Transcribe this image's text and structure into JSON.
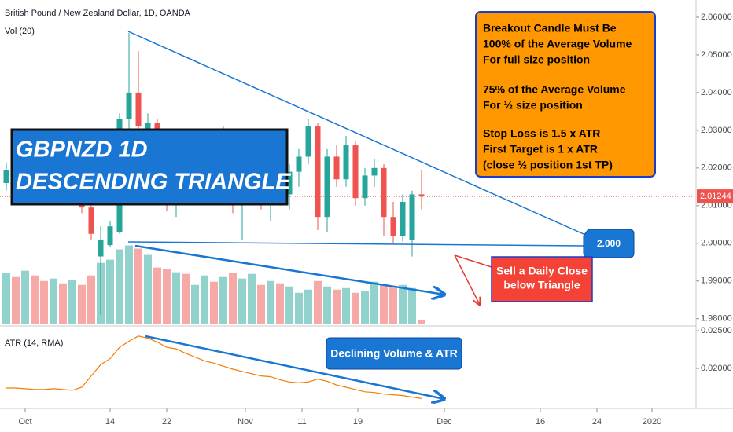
{
  "chart_data": {
    "type": "candlestick",
    "title": "British Pound / New Zealand Dollar, 1D, OANDA",
    "candles": {
      "up_color": "#26a69a",
      "down_color": "#ef5350",
      "open": [
        2.016,
        2.0195,
        2.018,
        2.0225,
        2.0195,
        2.0165,
        2.0185,
        2.0145,
        2.016,
        2.0095,
        1.9965,
        1.9995,
        2.003,
        2.033,
        2.04,
        2.03,
        2.032,
        2.0195,
        2.0105,
        2.017,
        2.0135,
        2.02,
        2.026,
        2.018,
        2.028,
        2.011,
        2.015,
        2.021,
        2.012,
        2.018,
        2.013,
        2.019,
        2.023,
        2.031,
        2.007,
        2.023,
        2.017,
        2.026,
        2.012,
        2.018,
        2.02,
        2.007,
        2.002,
        2.001,
        2.013
      ],
      "high": [
        2.0215,
        2.023,
        2.024,
        2.025,
        2.0215,
        2.02,
        2.0205,
        2.0175,
        2.017,
        2.011,
        2.0045,
        2.006,
        2.0345,
        2.0558,
        2.051,
        2.0345,
        2.033,
        2.023,
        2.019,
        2.021,
        2.022,
        2.03,
        2.029,
        2.031,
        2.03,
        2.018,
        2.023,
        2.024,
        2.02,
        2.022,
        2.021,
        2.025,
        2.033,
        2.032,
        2.025,
        2.026,
        2.0285,
        2.027,
        2.02,
        2.0225,
        2.021,
        2.011,
        2.013,
        2.014,
        2.0195
      ],
      "low": [
        2.014,
        2.017,
        2.0165,
        2.0185,
        2.015,
        2.014,
        2.013,
        2.011,
        2.008,
        2.001,
        1.981,
        1.999,
        2.0025,
        2.03,
        2.0285,
        2.027,
        2.018,
        2.0085,
        2.007,
        2.012,
        2.011,
        2.017,
        2.016,
        2.015,
        2.008,
        2.001,
        2.012,
        2.009,
        2.006,
        2.01,
        2.009,
        2.015,
        2.021,
        2.0035,
        2.003,
        2.015,
        2.015,
        2.01,
        2.01,
        2.015,
        2.002,
        2.0,
        2.0005,
        1.9965,
        2.009
      ],
      "close": [
        2.0195,
        2.018,
        2.0225,
        2.0195,
        2.0165,
        2.0185,
        2.0145,
        2.016,
        2.0095,
        2.0025,
        2.001,
        2.0045,
        2.033,
        2.04,
        2.031,
        2.032,
        2.0195,
        2.0105,
        2.017,
        2.0135,
        2.02,
        2.026,
        2.018,
        2.028,
        2.011,
        2.015,
        2.021,
        2.012,
        2.018,
        2.013,
        2.019,
        2.023,
        2.031,
        2.007,
        2.023,
        2.017,
        2.026,
        2.012,
        2.018,
        2.02,
        2.007,
        2.002,
        2.011,
        2.013,
        2.01244
      ]
    },
    "volume": {
      "name": "Vol (20)",
      "values": [
        65,
        60,
        68,
        62,
        55,
        58,
        52,
        56,
        50,
        62,
        78,
        82,
        95,
        100,
        96,
        88,
        72,
        70,
        66,
        64,
        50,
        62,
        54,
        60,
        65,
        58,
        64,
        50,
        55,
        52,
        48,
        40,
        44,
        55,
        48,
        44,
        46,
        40,
        42,
        54,
        50,
        48,
        50,
        46,
        5
      ],
      "vlim": [
        0,
        413
      ]
    },
    "atr": {
      "name": "ATR (14, RMA)",
      "color": "#f57c00",
      "values": [
        0.0174,
        0.0174,
        0.0173,
        0.0172,
        0.0172,
        0.0173,
        0.0172,
        0.0171,
        0.0175,
        0.019,
        0.0205,
        0.0213,
        0.0228,
        0.0236,
        0.0243,
        0.024,
        0.0235,
        0.0228,
        0.0226,
        0.022,
        0.0215,
        0.021,
        0.0207,
        0.0203,
        0.0199,
        0.0196,
        0.0193,
        0.019,
        0.0189,
        0.0185,
        0.0182,
        0.0181,
        0.0182,
        0.0186,
        0.0183,
        0.0178,
        0.0175,
        0.0172,
        0.0169,
        0.0168,
        0.0166,
        0.0165,
        0.0164,
        0.0162,
        0.016
      ],
      "ylim": [
        0.01469,
        0.02563
      ],
      "yticks": [
        {
          "value": 0.025,
          "label": "0.02500"
        },
        {
          "value": 0.02,
          "label": "0.02000"
        }
      ]
    },
    "xlim": [
      -0.667,
      73.083
    ],
    "xticks": [
      {
        "value": 2,
        "label": "Oct"
      },
      {
        "value": 11,
        "label": "14"
      },
      {
        "value": 17,
        "label": "22"
      },
      {
        "value": 25.33,
        "label": "Nov"
      },
      {
        "value": 31.33,
        "label": "11"
      },
      {
        "value": 37.25,
        "label": "19"
      },
      {
        "value": 46.42,
        "label": "Dec"
      },
      {
        "value": 56.58,
        "label": "16"
      },
      {
        "value": 62.58,
        "label": "24"
      },
      {
        "value": 68.42,
        "label": "2020"
      }
    ],
    "ylim": [
      1.97806,
      2.06458
    ],
    "yticks": [
      {
        "value": 2.06,
        "label": "2.06000"
      },
      {
        "value": 2.05,
        "label": "2.05000"
      },
      {
        "value": 2.04,
        "label": "2.04000"
      },
      {
        "value": 2.03,
        "label": "2.03000"
      },
      {
        "value": 2.02,
        "label": "2.02000"
      },
      {
        "value": 2.01,
        "label": "2.01000"
      },
      {
        "value": 2.0,
        "label": "2.00000"
      },
      {
        "value": 1.99,
        "label": "1.99000"
      },
      {
        "value": 1.98,
        "label": "1.98000"
      }
    ],
    "last_price": 2.01244,
    "last_price_color": "#ef5350",
    "grid": false,
    "annotations": {
      "title_box": [
        "GBPNZD 1D",
        "DESCENDING TRIANGLE"
      ],
      "rules_box": [
        "Breakout Candle Must Be",
        "100% of the Average Volume",
        "For full size position",
        "75% of the Average Volume",
        "For ½ size position",
        "Stop Loss is 1.5 x ATR",
        "First Target is 1 x ATR",
        "(close ½ position 1st TP)"
      ],
      "support_label": "2.000",
      "sell_box": [
        "Sell a Daily Close",
        "below Triangle"
      ],
      "decline_box": "Declining Volume & ATR"
    }
  }
}
